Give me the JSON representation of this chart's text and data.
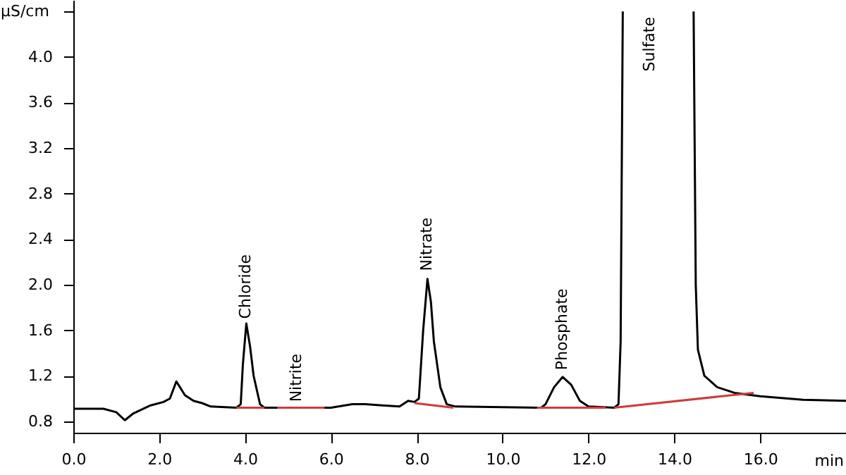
{
  "chart_data": {
    "type": "line",
    "xlabel": "min",
    "ylabel": "µS/cm",
    "xlim": [
      0,
      18
    ],
    "ylim": [
      0.7,
      4.5
    ],
    "xticks": [
      {
        "value": 0,
        "label": "0.0"
      },
      {
        "value": 2,
        "label": "2.0"
      },
      {
        "value": 4,
        "label": "4.0"
      },
      {
        "value": 6,
        "label": "6.0"
      },
      {
        "value": 8,
        "label": "8.0"
      },
      {
        "value": 10,
        "label": "10.0"
      },
      {
        "value": 12,
        "label": "12.0"
      },
      {
        "value": 14,
        "label": "14.0"
      },
      {
        "value": 16,
        "label": "16.0"
      },
      {
        "value": 18,
        "label": null
      }
    ],
    "yticks": [
      0.8,
      1.2,
      1.6,
      {
        "value": 2,
        "label": "2.0"
      },
      2.4,
      2.8,
      3.2,
      3.6,
      {
        "value": 4,
        "label": "4.0"
      },
      {
        "value": 4.4,
        "label": null
      }
    ],
    "grid": false,
    "series": [
      {
        "color": "#000000",
        "x": [
          0,
          0.7,
          1.0,
          1.2,
          1.4,
          1.8,
          2.1,
          2.25,
          2.4,
          2.6,
          2.8,
          3.0,
          3.2,
          3.8,
          3.9,
          3.95,
          4.03,
          4.12,
          4.2,
          4.35,
          4.45,
          5.8,
          6.0,
          6.5,
          6.8,
          7.2,
          7.6,
          7.8,
          7.95,
          8.05,
          8.15,
          8.25,
          8.33,
          8.4,
          8.55,
          8.7,
          8.9,
          10.9,
          11.0,
          11.2,
          11.4,
          11.6,
          11.8,
          12.0,
          12.6,
          12.7,
          12.75,
          12.8,
          13.6,
          14.45,
          14.5,
          14.55,
          14.7,
          15.0,
          15.4,
          16.0,
          17.0,
          18.0
        ],
        "values": [
          0.91,
          0.91,
          0.88,
          0.81,
          0.87,
          0.94,
          0.97,
          1.0,
          1.15,
          1.03,
          0.98,
          0.96,
          0.93,
          0.92,
          0.95,
          1.3,
          1.66,
          1.45,
          1.2,
          0.95,
          0.92,
          0.92,
          0.92,
          0.95,
          0.95,
          0.94,
          0.93,
          0.98,
          0.97,
          1.0,
          1.6,
          2.05,
          1.85,
          1.5,
          1.1,
          0.95,
          0.93,
          0.92,
          0.95,
          1.1,
          1.19,
          1.12,
          0.98,
          0.93,
          0.92,
          0.95,
          1.5,
          4.4,
          null,
          4.4,
          2.0,
          1.43,
          1.2,
          1.1,
          1.05,
          1.02,
          0.99,
          0.98
        ]
      },
      {
        "color": "#d13b3b",
        "x": [
          3.8,
          4.45
        ],
        "values": [
          0.92,
          0.92
        ]
      },
      {
        "color": "#d13b3b",
        "x": [
          4.75,
          5.85
        ],
        "values": [
          0.92,
          0.92
        ]
      },
      {
        "color": "#d13b3b",
        "x": [
          7.95,
          8.85
        ],
        "values": [
          0.96,
          0.92
        ]
      },
      {
        "color": "#d13b3b",
        "x": [
          10.8,
          12.4
        ],
        "values": [
          0.92,
          0.92
        ]
      },
      {
        "color": "#d13b3b",
        "x": [
          12.6,
          15.85
        ],
        "values": [
          0.92,
          1.05
        ]
      }
    ],
    "annotations": [
      {
        "text": "Chloride",
        "x": 4.03,
        "y": 1.7
      },
      {
        "text": "Nitrite",
        "x": 5.2,
        "y": 0.97
      },
      {
        "text": "Nitrate",
        "x": 8.25,
        "y": 2.12
      },
      {
        "text": "Phosphate",
        "x": 11.4,
        "y": 1.25
      },
      "Sulfate"
    ]
  }
}
